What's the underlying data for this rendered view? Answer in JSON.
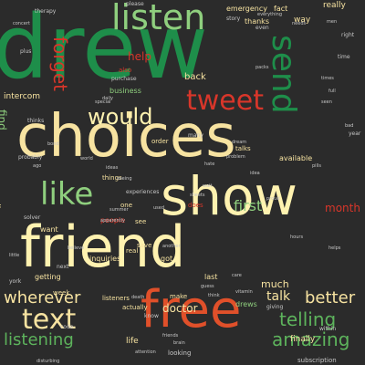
{
  "colors": {
    "background": "#2b2b2b",
    "green": "#1e8e4a",
    "light_green": "#8fcf7e",
    "red": "#d8362a",
    "orange_red": "#e0502a",
    "cream": "#f7e3a1",
    "yellow": "#fff2b0",
    "mid_green": "#5db35c",
    "small_text": "#c7c7c7"
  },
  "words": [
    {
      "text": "drew",
      "color": "green"
    },
    {
      "text": "choices",
      "color": "cream"
    },
    {
      "text": "friend",
      "color": "yellow"
    },
    {
      "text": "show",
      "color": "yellow"
    },
    {
      "text": "free",
      "color": "orange_red"
    },
    {
      "text": "listen",
      "color": "light_green"
    },
    {
      "text": "send",
      "color": "green"
    },
    {
      "text": "tweet",
      "color": "red"
    },
    {
      "text": "would",
      "color": "yellow"
    },
    {
      "text": "like",
      "color": "light_green"
    },
    {
      "text": "text",
      "color": "cream"
    },
    {
      "text": "wherever",
      "color": "cream"
    },
    {
      "text": "telling",
      "color": "mid_green"
    },
    {
      "text": "amazing",
      "color": "mid_green"
    },
    {
      "text": "listening",
      "color": "mid_green"
    },
    {
      "text": "better",
      "color": "cream"
    },
    {
      "text": "forget",
      "color": "red"
    },
    {
      "text": "find",
      "color": "light_green"
    },
    {
      "text": "first",
      "color": "light_green"
    },
    {
      "text": "doctor",
      "color": "cream"
    },
    {
      "text": "month",
      "color": "red"
    },
    {
      "text": "talk",
      "color": "cream"
    },
    {
      "text": "much",
      "color": "cream"
    },
    {
      "text": "finally",
      "color": "cream"
    },
    {
      "text": "help",
      "color": "red"
    },
    {
      "text": "back",
      "color": "cream"
    },
    {
      "text": "emergency",
      "color": "cream"
    },
    {
      "text": "fact",
      "color": "cream"
    },
    {
      "text": "way",
      "color": "cream"
    },
    {
      "text": "really",
      "color": "cream"
    },
    {
      "text": "thanks",
      "color": "cream"
    },
    {
      "text": "available",
      "color": "cream"
    },
    {
      "text": "intercom",
      "color": "cream"
    },
    {
      "text": "discuss",
      "color": "cream"
    },
    {
      "text": "people",
      "color": "red"
    },
    {
      "text": "inquiries",
      "color": "cream"
    },
    {
      "text": "listeners",
      "color": "cream"
    },
    {
      "text": "life",
      "color": "cream"
    },
    {
      "text": "drews",
      "color": "light_green"
    },
    {
      "text": "talks",
      "color": "cream"
    },
    {
      "text": "getting",
      "color": "cream"
    },
    {
      "text": "want",
      "color": "cream"
    },
    {
      "text": "last",
      "color": "cream"
    },
    {
      "text": "make",
      "color": "cream"
    },
    {
      "text": "see",
      "color": "cream"
    },
    {
      "text": "save",
      "color": "cream"
    },
    {
      "text": "got",
      "color": "cream"
    },
    {
      "text": "real",
      "color": "cream"
    },
    {
      "text": "week",
      "color": "cream"
    },
    {
      "text": "one",
      "color": "cream"
    },
    {
      "text": "subscription",
      "color": "small_text"
    },
    {
      "text": "looking",
      "color": "small_text"
    },
    {
      "text": "actually",
      "color": "cream"
    },
    {
      "text": "business",
      "color": "light_green"
    },
    {
      "text": "things",
      "color": "cream"
    },
    {
      "text": "experiences",
      "color": "small_text"
    },
    {
      "text": "does",
      "color": "red"
    },
    {
      "text": "many",
      "color": "small_text"
    },
    {
      "text": "order",
      "color": "cream"
    },
    {
      "text": "year",
      "color": "small_text"
    },
    {
      "text": "also",
      "color": "red"
    },
    {
      "text": "purchase",
      "color": "small_text"
    },
    {
      "text": "special",
      "color": "small_text"
    },
    {
      "text": "thinks",
      "color": "small_text"
    },
    {
      "text": "probably",
      "color": "small_text"
    },
    {
      "text": "solver",
      "color": "small_text"
    },
    {
      "text": "code",
      "color": "small_text"
    },
    {
      "text": "york",
      "color": "small_text"
    },
    {
      "text": "next",
      "color": "small_text"
    },
    {
      "text": "therapy",
      "color": "small_text"
    },
    {
      "text": "please",
      "color": "small_text"
    },
    {
      "text": "time",
      "color": "small_text"
    },
    {
      "text": "right",
      "color": "small_text"
    },
    {
      "text": "even",
      "color": "small_text"
    },
    {
      "text": "story",
      "color": "small_text"
    },
    {
      "text": "plus",
      "color": "small_text"
    },
    {
      "text": "dream",
      "color": "small_text"
    },
    {
      "text": "problem",
      "color": "small_text"
    },
    {
      "text": "idea",
      "color": "small_text"
    },
    {
      "text": "world",
      "color": "small_text"
    },
    {
      "text": "know",
      "color": "small_text"
    },
    {
      "text": "giving",
      "color": "small_text"
    },
    {
      "text": "within",
      "color": "small_text"
    },
    {
      "text": "attention",
      "color": "small_text"
    },
    {
      "text": "brain",
      "color": "small_text"
    },
    {
      "text": "friends",
      "color": "small_text"
    },
    {
      "text": "another",
      "color": "small_text"
    },
    {
      "text": "vitamin",
      "color": "small_text"
    },
    {
      "text": "death",
      "color": "small_text"
    },
    {
      "text": "care",
      "color": "small_text"
    },
    {
      "text": "think",
      "color": "small_text"
    },
    {
      "text": "hours",
      "color": "small_text"
    },
    {
      "text": "times",
      "color": "small_text"
    },
    {
      "text": "packs",
      "color": "small_text"
    },
    {
      "text": "bond",
      "color": "small_text"
    },
    {
      "text": "little",
      "color": "small_text"
    },
    {
      "text": "disturbing",
      "color": "small_text"
    },
    {
      "text": "summer",
      "color": "small_text"
    },
    {
      "text": "men",
      "color": "small_text"
    },
    {
      "text": "bad",
      "color": "small_text"
    },
    {
      "text": "seen",
      "color": "small_text"
    },
    {
      "text": "full",
      "color": "small_text"
    },
    {
      "text": "everything",
      "color": "small_text"
    },
    {
      "text": "daily",
      "color": "small_text"
    },
    {
      "text": "guess",
      "color": "small_text"
    },
    {
      "text": "proud",
      "color": "small_text"
    },
    {
      "text": "sheets",
      "color": "small_text"
    },
    {
      "text": "needs",
      "color": "small_text"
    },
    {
      "text": "pills",
      "color": "small_text"
    },
    {
      "text": "seeing",
      "color": "small_text"
    },
    {
      "text": "helps",
      "color": "small_text"
    },
    {
      "text": "believe",
      "color": "small_text"
    },
    {
      "text": "ago",
      "color": "small_text"
    },
    {
      "text": "wait",
      "color": "small_text"
    },
    {
      "text": "used",
      "color": "small_text"
    },
    {
      "text": "ideas",
      "color": "small_text"
    },
    {
      "text": "apparently",
      "color": "small_text"
    },
    {
      "text": "concert",
      "color": "small_text"
    },
    {
      "text": "hate",
      "color": "small_text"
    }
  ]
}
